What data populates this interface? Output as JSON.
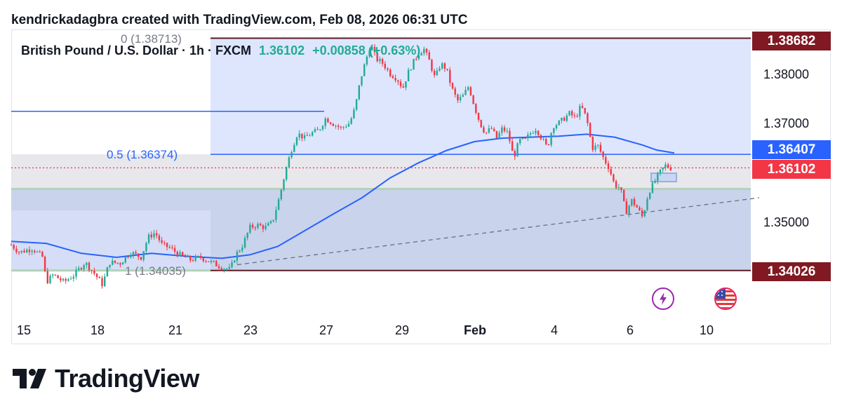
{
  "header": {
    "text": "kendrickadagbra created with TradingView.com, Feb 08, 2026 06:31 UTC"
  },
  "symbol": {
    "name": "British Pound / U.S. Dollar · 1h · FXCM",
    "price": "1.36102",
    "change": "+0.00858 (+0.63%)"
  },
  "fib": {
    "level0": "0 (1.38713)",
    "level05": "0.5 (1.36374)",
    "level1": "1 (1.34035)"
  },
  "price_tags": {
    "top": "1.38682",
    "ma": "1.36407",
    "last": "1.36102",
    "bottom": "1.34026"
  },
  "events": {
    "flash": "flash-icon",
    "flag": "us-flag-icon"
  },
  "footer": {
    "brand": "TradingView"
  },
  "colors": {
    "up": "#22ab94",
    "down": "#f23645",
    "fib_fill": "#dde6fd",
    "fib_mid": "#e7e7ec",
    "ma": "#2962ff",
    "tag_dark": "#801922",
    "tag_red": "#f23645",
    "tag_blue": "#2962ff"
  },
  "chart_data": {
    "type": "candlestick",
    "y_ticks": [
      "1.38000",
      "1.37000",
      "1.35000"
    ],
    "x_ticks": [
      "15",
      "18",
      "21",
      "23",
      "27",
      "29",
      "Feb",
      "4",
      "6",
      "10"
    ],
    "ylim": [
      1.3325,
      1.3913
    ],
    "horizontal_lines": [
      1.38713,
      1.36374,
      1.34035,
      1.3724
    ],
    "close_path": [
      [
        0,
        1.3455
      ],
      [
        12,
        1.344
      ],
      [
        30,
        1.3448
      ],
      [
        45,
        1.343
      ],
      [
        50,
        1.338
      ],
      [
        60,
        1.3395
      ],
      [
        75,
        1.338
      ],
      [
        90,
        1.3395
      ],
      [
        105,
        1.342
      ],
      [
        120,
        1.3395
      ],
      [
        130,
        1.3375
      ],
      [
        140,
        1.342
      ],
      [
        155,
        1.3418
      ],
      [
        170,
        1.344
      ],
      [
        185,
        1.343
      ],
      [
        195,
        1.347
      ],
      [
        205,
        1.348
      ],
      [
        215,
        1.3455
      ],
      [
        225,
        1.345
      ],
      [
        240,
        1.3435
      ],
      [
        255,
        1.3425
      ],
      [
        270,
        1.343
      ],
      [
        285,
        1.342
      ],
      [
        300,
        1.341
      ],
      [
        312,
        1.3405
      ],
      [
        320,
        1.3435
      ],
      [
        330,
        1.3455
      ],
      [
        340,
        1.349
      ],
      [
        350,
        1.3495
      ],
      [
        362,
        1.349
      ],
      [
        372,
        1.35
      ],
      [
        382,
        1.355
      ],
      [
        392,
        1.361
      ],
      [
        400,
        1.365
      ],
      [
        408,
        1.368
      ],
      [
        418,
        1.367
      ],
      [
        428,
        1.368
      ],
      [
        438,
        1.3685
      ],
      [
        448,
        1.371
      ],
      [
        458,
        1.37
      ],
      [
        470,
        1.369
      ],
      [
        482,
        1.37
      ],
      [
        490,
        1.373
      ],
      [
        498,
        1.379
      ],
      [
        506,
        1.383
      ],
      [
        512,
        1.386
      ],
      [
        520,
        1.383
      ],
      [
        530,
        1.382
      ],
      [
        540,
        1.38
      ],
      [
        550,
        1.379
      ],
      [
        558,
        1.377
      ],
      [
        565,
        1.38
      ],
      [
        572,
        1.382
      ],
      [
        580,
        1.384
      ],
      [
        588,
        1.385
      ],
      [
        596,
        1.3825
      ],
      [
        604,
        1.379
      ],
      [
        612,
        1.382
      ],
      [
        620,
        1.381
      ],
      [
        628,
        1.377
      ],
      [
        636,
        1.3745
      ],
      [
        644,
        1.3755
      ],
      [
        652,
        1.3775
      ],
      [
        660,
        1.3735
      ],
      [
        668,
        1.37
      ],
      [
        676,
        1.368
      ],
      [
        684,
        1.369
      ],
      [
        692,
        1.367
      ],
      [
        700,
        1.369
      ],
      [
        708,
        1.368
      ],
      [
        716,
        1.363
      ],
      [
        724,
        1.3665
      ],
      [
        732,
        1.3665
      ],
      [
        740,
        1.368
      ],
      [
        748,
        1.369
      ],
      [
        756,
        1.367
      ],
      [
        764,
        1.365
      ],
      [
        772,
        1.3695
      ],
      [
        780,
        1.37
      ],
      [
        788,
        1.371
      ],
      [
        796,
        1.372
      ],
      [
        804,
        1.371
      ],
      [
        812,
        1.3735
      ],
      [
        820,
        1.371
      ],
      [
        828,
        1.365
      ],
      [
        836,
        1.3655
      ],
      [
        844,
        1.363
      ],
      [
        852,
        1.361
      ],
      [
        860,
        1.3575
      ],
      [
        868,
        1.357
      ],
      [
        876,
        1.352
      ],
      [
        884,
        1.3545
      ],
      [
        892,
        1.353
      ],
      [
        900,
        1.351
      ],
      [
        908,
        1.356
      ],
      [
        916,
        1.358
      ],
      [
        924,
        1.36
      ],
      [
        932,
        1.3615
      ],
      [
        940,
        1.361
      ]
    ],
    "ma_path": [
      [
        0,
        1.3462
      ],
      [
        50,
        1.3458
      ],
      [
        100,
        1.3438
      ],
      [
        150,
        1.343
      ],
      [
        200,
        1.3438
      ],
      [
        250,
        1.3432
      ],
      [
        300,
        1.3428
      ],
      [
        340,
        1.3435
      ],
      [
        380,
        1.3452
      ],
      [
        420,
        1.3485
      ],
      [
        460,
        1.3518
      ],
      [
        500,
        1.355
      ],
      [
        540,
        1.359
      ],
      [
        580,
        1.362
      ],
      [
        620,
        1.3645
      ],
      [
        660,
        1.3663
      ],
      [
        700,
        1.367
      ],
      [
        740,
        1.3672
      ],
      [
        780,
        1.3674
      ],
      [
        820,
        1.3678
      ],
      [
        860,
        1.3672
      ],
      [
        900,
        1.3656
      ],
      [
        920,
        1.3646
      ],
      [
        945,
        1.364
      ]
    ],
    "trendline": [
      [
        322,
        1.3415
      ],
      [
        1066,
        1.355
      ]
    ]
  }
}
